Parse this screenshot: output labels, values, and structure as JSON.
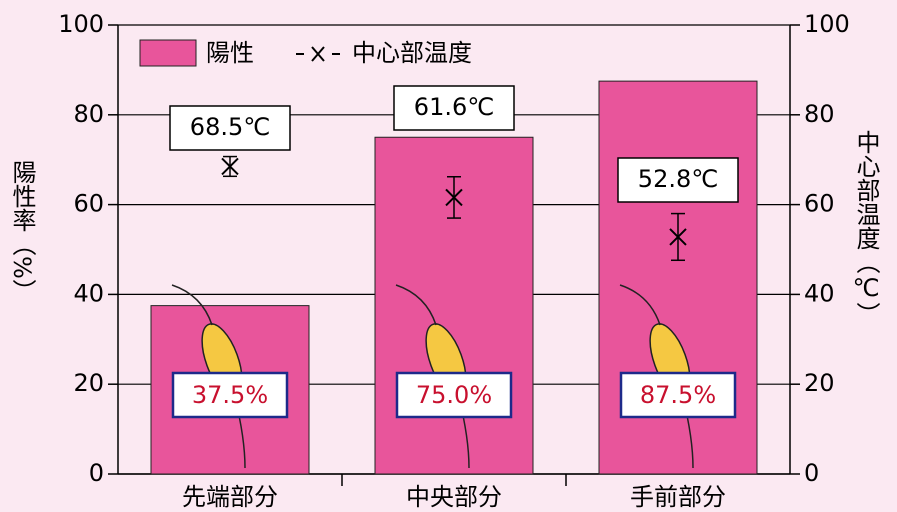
{
  "chart_data": {
    "type": "bar",
    "categories": [
      "先端部分",
      "中央部分",
      "手前部分"
    ],
    "series": [
      {
        "name": "陽性",
        "color": "#e8559b",
        "values": [
          37.5,
          75.0,
          87.5
        ],
        "value_labels": [
          "37.5%",
          "75.0%",
          "87.5%"
        ]
      },
      {
        "name": "中心部温度",
        "type": "errorbar",
        "axis": "y2",
        "color": "#000000",
        "values": [
          68.5,
          61.6,
          52.8
        ],
        "errors": [
          2.2,
          4.6,
          5.2
        ],
        "value_labels": [
          "68.5℃",
          "61.6℃",
          "52.8℃"
        ]
      }
    ],
    "ylabel": "陽性率（%）",
    "y2label": "中心部温度（℃）",
    "ylim": [
      0,
      100
    ],
    "yticks": [
      0,
      20,
      40,
      60,
      80,
      100
    ],
    "y2lim": [
      0,
      100
    ],
    "y2ticks": [
      0,
      20,
      40,
      60,
      80,
      100
    ],
    "grid": true,
    "legend": "top-left"
  }
}
